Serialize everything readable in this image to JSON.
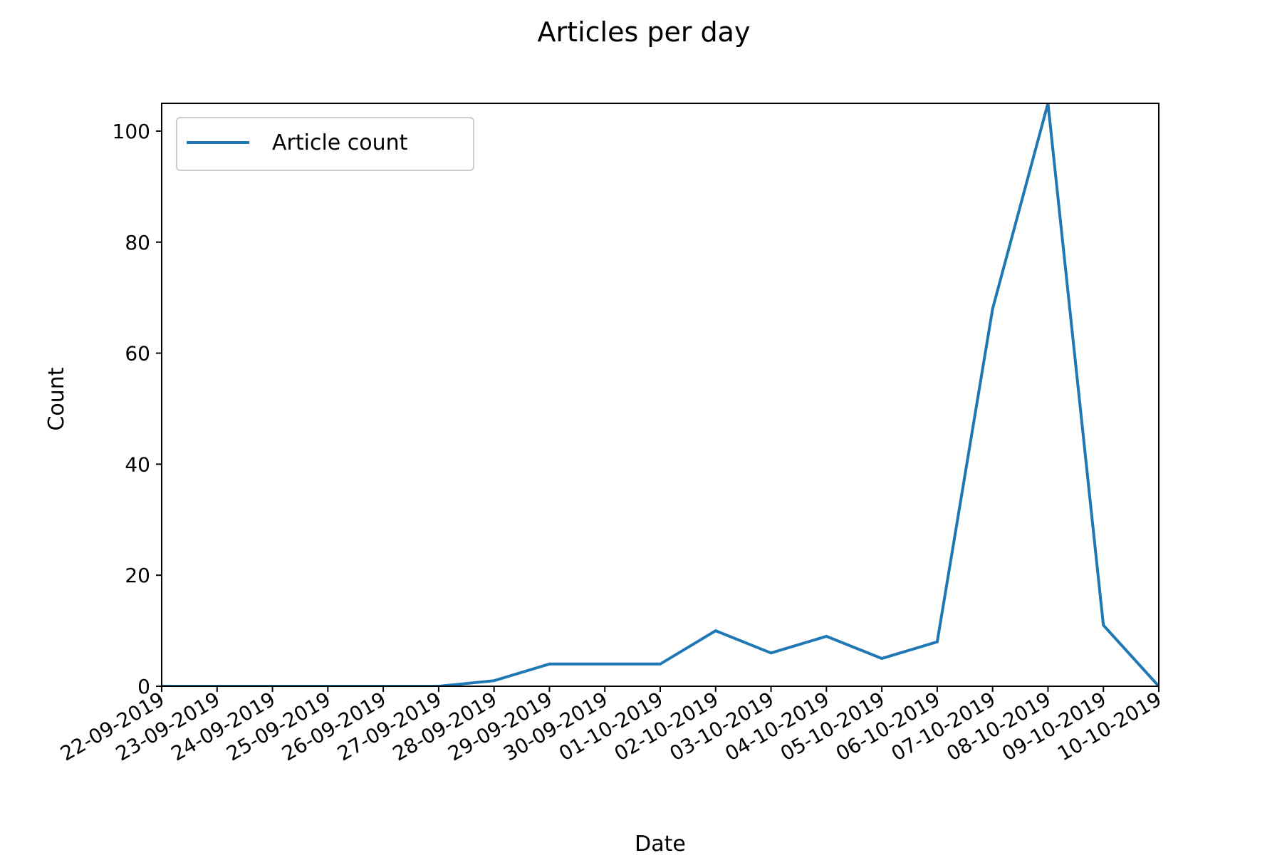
{
  "chart_data": {
    "type": "line",
    "title": "Articles per day",
    "xlabel": "Date",
    "ylabel": "Count",
    "categories": [
      "22-09-2019",
      "23-09-2019",
      "24-09-2019",
      "25-09-2019",
      "26-09-2019",
      "27-09-2019",
      "28-09-2019",
      "29-09-2019",
      "30-09-2019",
      "01-10-2019",
      "02-10-2019",
      "03-10-2019",
      "04-10-2019",
      "05-10-2019",
      "06-10-2019",
      "07-10-2019",
      "08-10-2019",
      "09-10-2019",
      "10-10-2019"
    ],
    "series": [
      {
        "name": "Article count",
        "color": "#1f77b4",
        "values": [
          0,
          0,
          0,
          0,
          0,
          0,
          1,
          4,
          4,
          4,
          10,
          6,
          9,
          5,
          8,
          68,
          105,
          11,
          0
        ]
      }
    ],
    "ylim": [
      0,
      105
    ],
    "yticks": [
      0,
      20,
      40,
      60,
      80,
      100
    ],
    "grid": false,
    "legend_position": "top-left"
  }
}
